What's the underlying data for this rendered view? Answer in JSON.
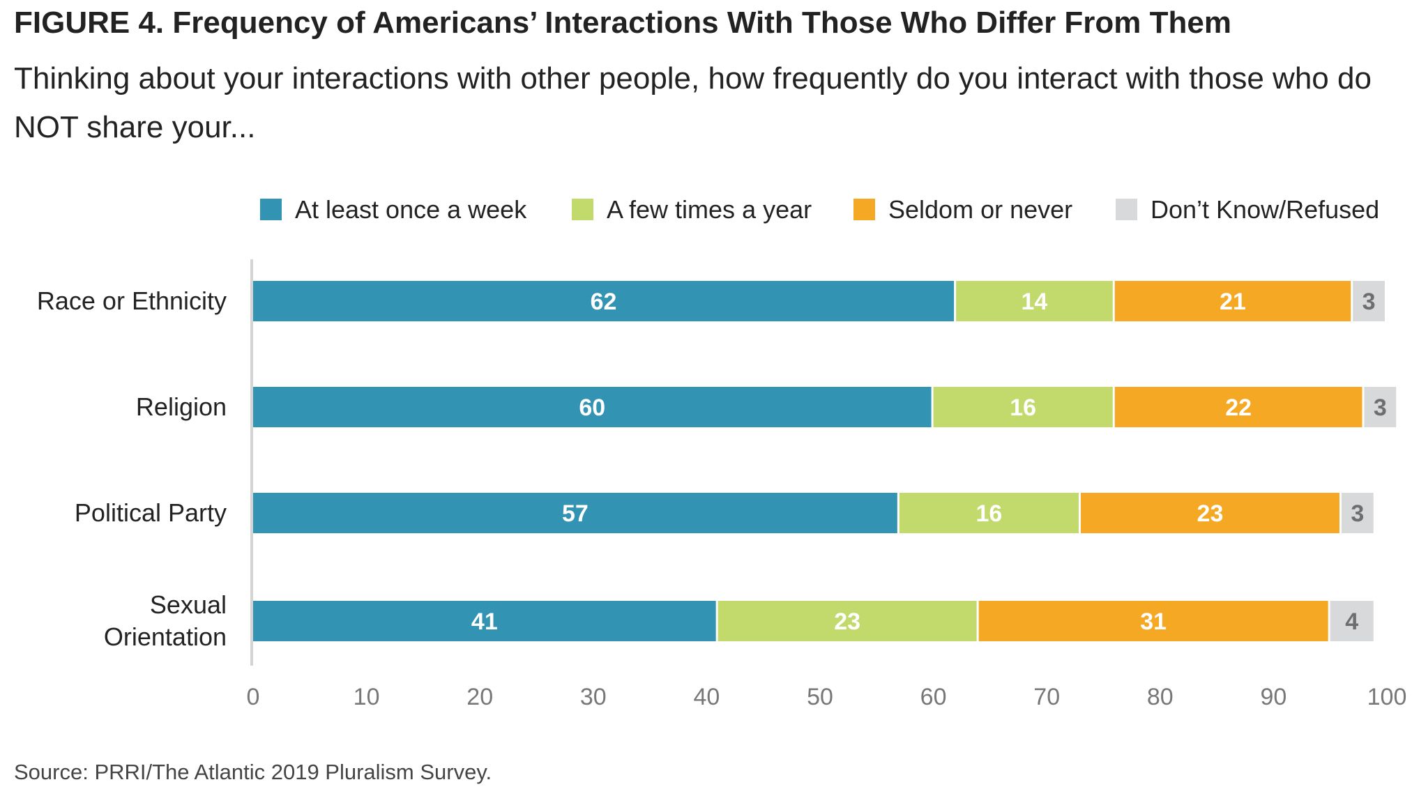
{
  "header": {
    "title": "FIGURE 4. Frequency of Americans’ Interactions With Those Who Differ From Them",
    "subtitle": "Thinking about your interactions with other people, how frequently do you interact with those who do NOT share your..."
  },
  "footer": {
    "source": "Source: PRRI/The Atlantic 2019 Pluralism Survey."
  },
  "chart_data": {
    "type": "bar",
    "orientation": "horizontal",
    "stacked": true,
    "title": "FIGURE 4. Frequency of Americans’ Interactions With Those Who Differ From Them",
    "xlabel": "",
    "ylabel": "",
    "xlim": [
      0,
      100
    ],
    "xticks": [
      "0",
      "10",
      "20",
      "30",
      "40",
      "50",
      "60",
      "70",
      "80",
      "90",
      "100"
    ],
    "grid": false,
    "legend_position": "top",
    "categories": [
      [
        "Race or Ethnicity"
      ],
      [
        "Religion"
      ],
      [
        "Political Party"
      ],
      [
        "Sexual",
        "Orientation"
      ]
    ],
    "series": [
      {
        "name": "At least once a week",
        "color": "#3293b2",
        "label_color": "#ffffff",
        "values": [
          62,
          60,
          57,
          41
        ]
      },
      {
        "name": "A few times a year",
        "color": "#c2d96c",
        "label_color": "#ffffff",
        "values": [
          14,
          16,
          16,
          23
        ]
      },
      {
        "name": "Seldom or never",
        "color": "#f5a823",
        "label_color": "#ffffff",
        "values": [
          21,
          22,
          23,
          31
        ]
      },
      {
        "name": "Don’t Know/Refused",
        "color": "#d8d9da",
        "label_color": "#6d6e70",
        "values": [
          3,
          3,
          3,
          4
        ]
      }
    ]
  }
}
